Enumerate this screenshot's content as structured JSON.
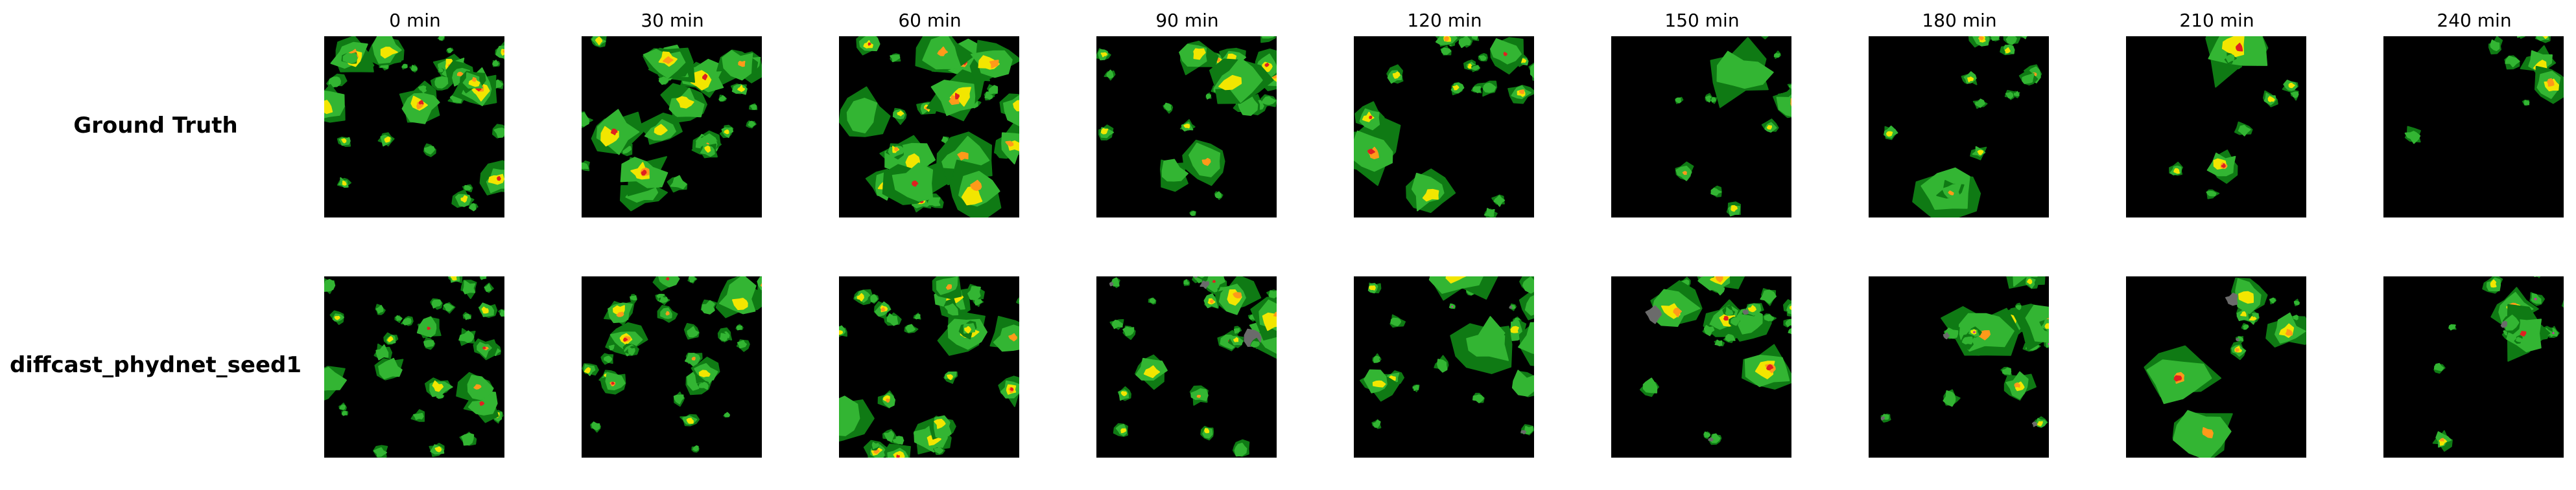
{
  "time_labels": [
    "0 min",
    "30 min",
    "60 min",
    "90 min",
    "120 min",
    "150 min",
    "180 min",
    "210 min",
    "240 min"
  ],
  "rows": [
    {
      "label": "Ground Truth"
    },
    {
      "label": "diffcast_phydnet_seed1"
    }
  ],
  "colors": {
    "background": "#000000",
    "light_green": "#33b533",
    "dark_green": "#0f7a14",
    "yellow": "#f2e600",
    "orange": "#ff9a1a",
    "red": "#e02020",
    "magenta": "#c03a9a",
    "grey": "#6b6b6b"
  }
}
